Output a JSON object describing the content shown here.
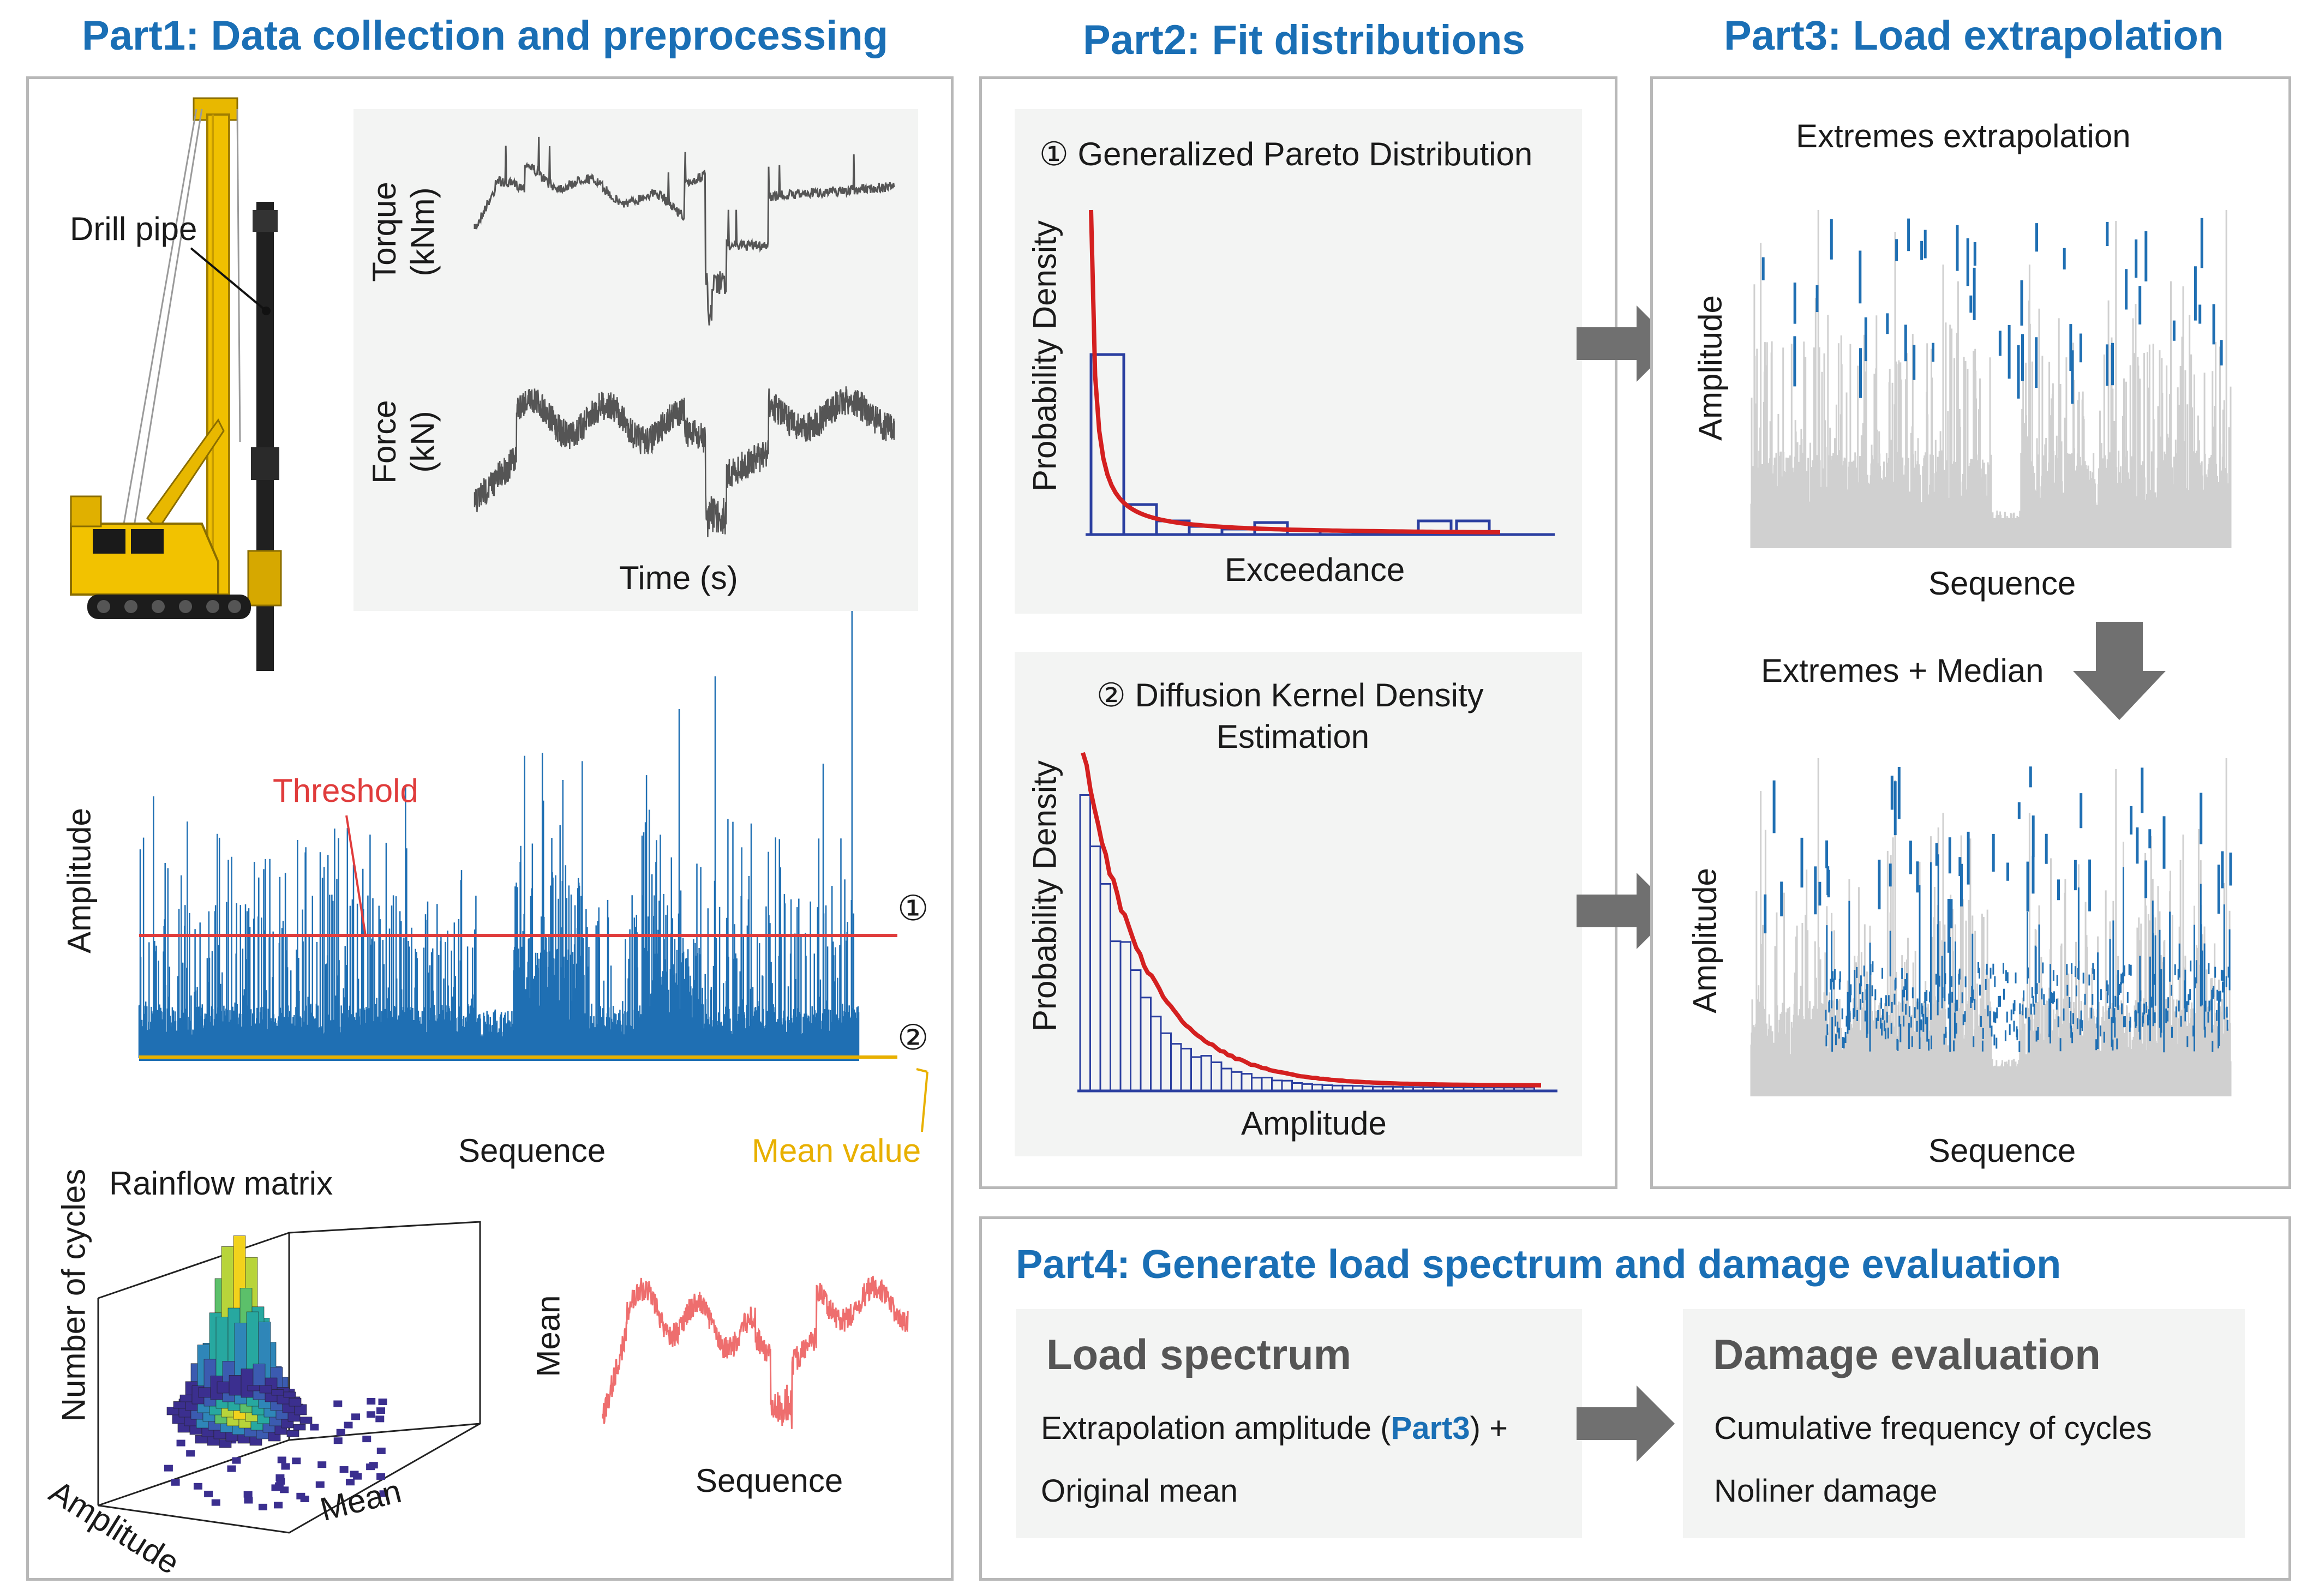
{
  "part1": {
    "title": "Part1: Data collection and preprocessing",
    "drill_pipe_label": "Drill pipe",
    "torque_label_line1": "Torque",
    "torque_label_line2": "(kNm)",
    "force_label_line1": "Force",
    "force_label_line2": "(kN)",
    "time_label": "Time (s)",
    "amplitude_label": "Amplitude",
    "threshold_label": "Threshold",
    "marker_1": "①",
    "marker_2": "②",
    "sequence_label": "Sequence",
    "mean_value_label": "Mean value",
    "rainflow_title": "Rainflow matrix",
    "rainflow_z_label": "Number of cycles",
    "rainflow_x_label": "Amplitude",
    "rainflow_y_label": "Mean",
    "mean_plot_ylabel": "Mean",
    "mean_plot_xlabel": "Sequence"
  },
  "part2": {
    "title": "Part2: Fit distributions",
    "gpd_title": "① Generalized Pareto Distribution",
    "gpd_ylabel": "Probability Density",
    "gpd_xlabel": "Exceedance",
    "dkde_title_line1": "② Diffusion Kernel Density",
    "dkde_title_line2": "Estimation",
    "dkde_ylabel": "Probability Density",
    "dkde_xlabel": "Amplitude"
  },
  "part3": {
    "title": "Part3: Load extrapolation",
    "top_title": "Extremes extrapolation",
    "top_ylabel": "Amplitude",
    "top_xlabel": "Sequence",
    "arrow_label": "Extremes + Median",
    "bottom_ylabel": "Amplitude",
    "bottom_xlabel": "Sequence"
  },
  "part4": {
    "title": "Part4: Generate load spectrum and damage evaluation",
    "load_spectrum_heading": "Load spectrum",
    "load_line1_pre": "Extrapolation amplitude (",
    "load_line1_ref": "Part3",
    "load_line1_post": ") +",
    "load_line2": "Original mean",
    "damage_heading": "Damage evaluation",
    "damage_line1": "Cumulative frequency of cycles",
    "damage_line2": "Noliner damage"
  },
  "colors": {
    "accent_blue": "#1a6fb5",
    "signal_blue": "#1f6fb3",
    "threshold_red": "#e03c3c",
    "mean_yellow": "#e8b000",
    "fit_red": "#d42020",
    "hist_navy": "#2b3fa0",
    "grey_signal": "#d0d0d0",
    "mean_pink": "#ee6e6e",
    "arrow_grey": "#707070"
  }
}
